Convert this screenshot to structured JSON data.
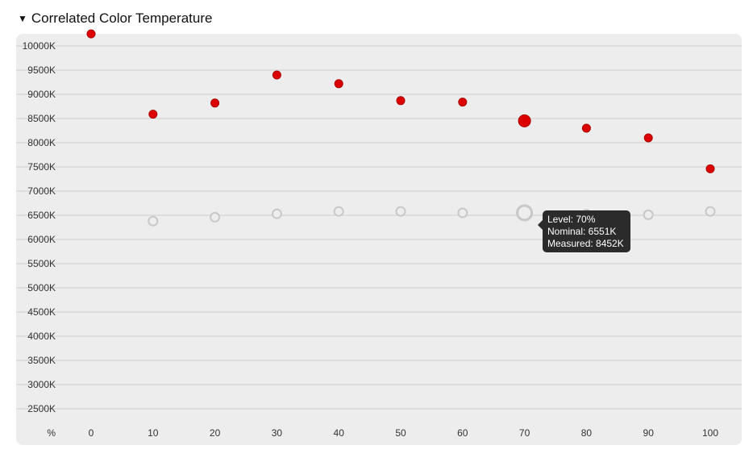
{
  "section": {
    "title": "Correlated Color Temperature",
    "caret": "▼"
  },
  "chart_data": {
    "type": "scatter",
    "x_unit_label": "%",
    "x": [
      0,
      10,
      20,
      30,
      40,
      50,
      60,
      70,
      80,
      90,
      100
    ],
    "xticks": [
      "0",
      "10",
      "20",
      "30",
      "40",
      "50",
      "60",
      "70",
      "80",
      "90",
      "100"
    ],
    "ylim": [
      2500,
      10000
    ],
    "yticks": [
      "2500K",
      "3000K",
      "3500K",
      "4000K",
      "4500K",
      "5000K",
      "5500K",
      "6000K",
      "6500K",
      "7000K",
      "7500K",
      "8000K",
      "8500K",
      "9000K",
      "9500K",
      "10000K"
    ],
    "grid": true,
    "series": [
      {
        "key": "measured",
        "color": "#dd0000",
        "style": "filled",
        "values": [
          10250,
          8590,
          8820,
          9400,
          9220,
          8870,
          8840,
          8452,
          8300,
          8100,
          7460
        ]
      },
      {
        "key": "nominal",
        "color": "#c8c8c8",
        "style": "hollow",
        "values": [
          null,
          6380,
          6460,
          6530,
          6580,
          6580,
          6550,
          6551,
          6520,
          6510,
          6580
        ]
      }
    ],
    "highlight_index": 7
  },
  "tooltip": {
    "level": "Level: 70%",
    "nominal": "Nominal: 6551K",
    "measured": "Measured: 8452K"
  }
}
